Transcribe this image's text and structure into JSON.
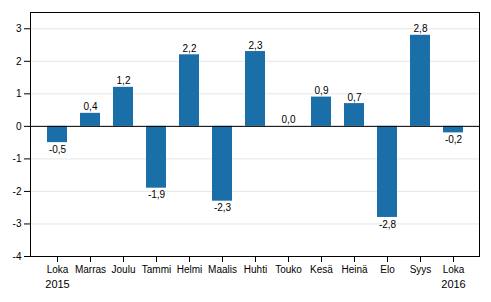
{
  "chart_data": {
    "type": "bar",
    "categories": [
      "Loka",
      "Marras",
      "Joulu",
      "Tammi",
      "Helmi",
      "Maalis",
      "Huhti",
      "Touko",
      "Kesä",
      "Heinä",
      "Elo",
      "Syys",
      "Loka"
    ],
    "values": [
      -0.5,
      0.4,
      1.2,
      -1.9,
      2.2,
      -2.3,
      2.3,
      0.0,
      0.9,
      0.7,
      -2.8,
      2.8,
      -0.2
    ],
    "value_labels": [
      "-0,5",
      "0,4",
      "1,2",
      "-1,9",
      "2,2",
      "-2,3",
      "2,3",
      "0,0",
      "0,9",
      "0,7",
      "-2,8",
      "2,8",
      "-0,2"
    ],
    "data_labels": true,
    "color": "#1a6fa8",
    "ylim": [
      -4,
      3.5
    ],
    "yticks": [
      -4,
      -3,
      -2,
      -1,
      0,
      1,
      2,
      3
    ],
    "grid": true,
    "annotations": [
      "2015",
      "2016"
    ]
  }
}
